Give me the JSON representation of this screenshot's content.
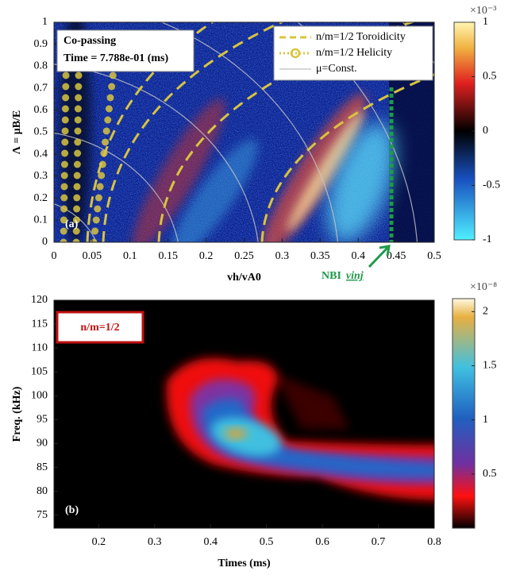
{
  "chart_data": [
    {
      "type": "heatmap",
      "panel_label": "(a)",
      "xlabel": "vh/vA0",
      "ylabel": "Λ = μB/E",
      "xlim": [
        0,
        0.5
      ],
      "ylim": [
        0,
        1
      ],
      "xticks": [
        0,
        0.05,
        0.1,
        0.15,
        0.2,
        0.25,
        0.3,
        0.35,
        0.4,
        0.45,
        0.5
      ],
      "yticks": [
        0,
        0.1,
        0.2,
        0.3,
        0.4,
        0.5,
        0.6,
        0.7,
        0.8,
        0.9,
        1
      ],
      "colorbar": {
        "lim": [
          -1,
          1
        ],
        "ticks": [
          1,
          0.5,
          0,
          -0.5,
          -1
        ],
        "exponent": "×10⁻³"
      },
      "info": [
        "Co-passing",
        "Time = 7.788e-01 (ms)"
      ],
      "legend": [
        {
          "name": "n/m=1/2 Toroidicity",
          "color": "#d8c440"
        },
        {
          "name": "n/m=1/2 Helicity",
          "color": "#d8c440"
        },
        {
          "name": "μ=Const.",
          "color": "#c8c8c8"
        }
      ],
      "annotation": {
        "text": "NBI",
        "sub": "vinj",
        "color": "#1f9a4a"
      }
    },
    {
      "type": "heatmap",
      "panel_label": "(b)",
      "xlabel": "Times (ms)",
      "ylabel": "Freq. (kHz)",
      "xlim": [
        0.12,
        0.8
      ],
      "ylim": [
        72.3,
        120
      ],
      "xticks": [
        0.2,
        0.3,
        0.4,
        0.5,
        0.6,
        0.7,
        0.8
      ],
      "yticks": [
        75,
        80,
        85,
        90,
        95,
        100,
        105,
        110,
        115,
        120
      ],
      "colorbar": {
        "lim": [
          0,
          2.12
        ],
        "ticks": [
          2,
          1.5,
          1,
          0.5
        ],
        "exponent": "×10⁻⁸"
      },
      "mode_label": "n/m=1/2"
    }
  ]
}
